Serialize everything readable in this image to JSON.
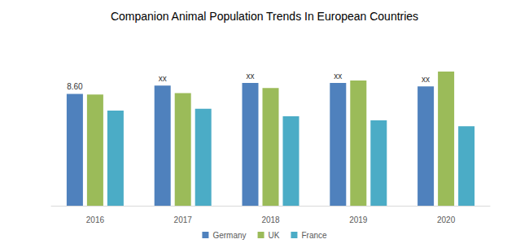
{
  "chart_data": {
    "type": "bar",
    "title": "Companion Animal Population Trends In European Countries",
    "categories": [
      "2016",
      "2017",
      "2018",
      "2019",
      "2020"
    ],
    "series": [
      {
        "name": "Germany",
        "color": "#4f81bd",
        "values": [
          8.6,
          9.24,
          9.43,
          9.43,
          9.17
        ],
        "data_labels": true,
        "value_labels": [
          "8.60",
          "xx",
          "xx",
          "xx",
          "xx"
        ]
      },
      {
        "name": "UK",
        "color": "#9bbb59",
        "values": [
          8.54,
          8.66,
          9.04,
          9.62,
          10.32
        ]
      },
      {
        "name": "France",
        "color": "#4bacc6",
        "values": [
          7.32,
          7.45,
          6.88,
          6.56,
          6.11
        ]
      }
    ],
    "ylim": [
      0,
      13
    ],
    "grid": false,
    "legend": "bottom",
    "tick_labels": "x"
  }
}
